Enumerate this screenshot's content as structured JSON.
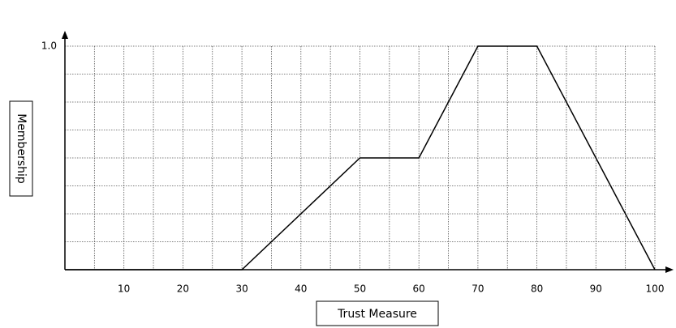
{
  "chart_data": {
    "type": "line",
    "x": [
      0,
      30,
      50,
      60,
      70,
      80,
      100
    ],
    "series": [
      {
        "color": "#000000",
        "values": [
          0,
          0,
          0.5,
          0.5,
          1,
          1,
          0
        ]
      }
    ],
    "xlim": [
      0,
      100
    ],
    "ylim": [
      0,
      1
    ],
    "xticks": [
      10,
      20,
      30,
      40,
      50,
      60,
      70,
      80,
      90,
      100
    ],
    "x_minor_ticks": [
      5,
      15,
      25,
      35,
      45,
      55,
      65,
      75,
      85,
      95
    ],
    "yticks": [
      {
        "value": 1,
        "label": "1.0"
      }
    ],
    "y_minor_ticks": [
      0.125,
      0.25,
      0.375,
      0.5,
      0.625,
      0.75,
      0.875
    ],
    "xlabel": "Trust Measure",
    "ylabel": "Membership",
    "grid": true
  }
}
